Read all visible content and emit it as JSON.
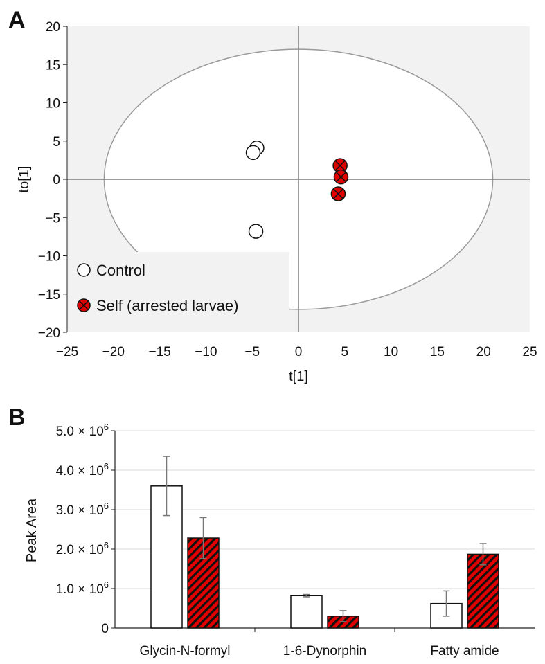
{
  "panel_a_letter": "A",
  "panel_b_letter": "B",
  "colors": {
    "self_fill": "#e00000",
    "control_fill": "#ffffff",
    "plot_bg": "#f2f2f2",
    "ellipse": "#9a9a9a",
    "axis": "#7f7f7f"
  },
  "chart_data": [
    {
      "type": "scatter",
      "xlabel": "t[1]",
      "ylabel": "to[1]",
      "xlim": [
        -25,
        25
      ],
      "ylim": [
        -20,
        20
      ],
      "xticks": [
        "−25",
        "−20",
        "−15",
        "−10",
        "−5",
        "0",
        "5",
        "10",
        "15",
        "20",
        "25"
      ],
      "yticks": [
        "20",
        "15",
        "10",
        "5",
        "0",
        "−5",
        "−10",
        "−15",
        "−20"
      ],
      "ellipse": {
        "center": [
          0,
          0
        ],
        "rx": 21,
        "ry": 17
      },
      "legend": {
        "position": "bottom-left"
      },
      "series": [
        {
          "name": "Control",
          "marker": "open-circle",
          "points": [
            [
              -4.5,
              4.1
            ],
            [
              -4.9,
              3.5
            ],
            [
              -4.6,
              -6.8
            ]
          ]
        },
        {
          "name": "Self (arrested larvae)",
          "marker": "red-circle-x",
          "points": [
            [
              4.5,
              1.8
            ],
            [
              4.6,
              0.3
            ],
            [
              4.3,
              -1.9
            ]
          ]
        }
      ]
    },
    {
      "type": "bar",
      "ylabel": "Peak Area",
      "ylim": [
        0,
        5000000
      ],
      "ytick_values": [
        0,
        1000000,
        2000000,
        3000000,
        4000000,
        5000000
      ],
      "ytick_mantissas": [
        "0",
        "1.0 × 10",
        "2.0 × 10",
        "3.0 × 10",
        "4.0 × 10",
        "5.0 × 10"
      ],
      "ytick_exponent": "6",
      "categories": [
        "Glycin-N-formyl",
        "1-6-Dynorphin",
        "Fatty amide"
      ],
      "series": [
        {
          "style": "open",
          "values": [
            3600000,
            820000,
            620000
          ],
          "errors": [
            750000,
            30000,
            320000
          ]
        },
        {
          "style": "red-hatched",
          "values": [
            2280000,
            300000,
            1870000
          ],
          "errors": [
            520000,
            140000,
            270000
          ]
        }
      ]
    }
  ]
}
